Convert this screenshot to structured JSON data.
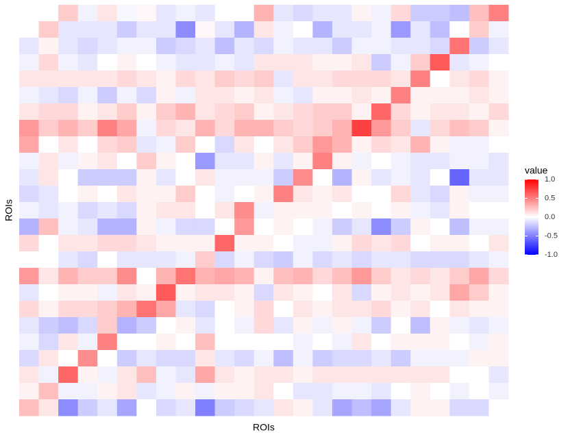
{
  "chart_data": {
    "type": "heatmap",
    "x_label": "ROIs",
    "y_label": "ROIs",
    "colors": {
      "low": "#0000ff",
      "mid": "#ffffff",
      "high": "#ff0000"
    },
    "colorbar": {
      "title": "value",
      "lim": [
        -1,
        1
      ],
      "ticks": [
        {
          "value": 1,
          "label": "1.0"
        },
        0.5,
        {
          "value": 0,
          "label": "0.0"
        },
        -0.5,
        {
          "value": -1,
          "label": "-1.0"
        }
      ]
    },
    "z": [
      [
        0,
        0,
        0.2,
        -0.05,
        0.1,
        -0.03,
        0.03,
        -0.1,
        -0.05,
        -0.1,
        0,
        0,
        0.3,
        -0.1,
        -0.15,
        -0.1,
        -0.1,
        0.05,
        -0.05,
        0.15,
        -0.2,
        -0.2,
        -0.25,
        0.25,
        0.5
      ],
      [
        0,
        0.2,
        -0.1,
        -0.1,
        -0.1,
        -0.2,
        -0.1,
        -0.1,
        -0.45,
        0.03,
        -0.1,
        -0.3,
        0.1,
        -0.05,
        0,
        -0.3,
        -0.1,
        -0.1,
        -0.05,
        -0.4,
        -0.1,
        -0.25,
        0,
        0.2,
        -0.05
      ],
      [
        -0.1,
        0.05,
        -0.1,
        -0.15,
        -0.1,
        -0.05,
        -0.05,
        -0.2,
        -0.15,
        -0.1,
        -0.25,
        -0.1,
        -0.15,
        -0.05,
        -0.1,
        -0.1,
        -0.2,
        -0.05,
        -0.05,
        -0.1,
        -0.1,
        -0.15,
        0.55,
        -0.2,
        -0.1
      ],
      [
        -0.05,
        0.15,
        -0.05,
        -0.1,
        0,
        0.05,
        0,
        -0.05,
        -0.1,
        -0.1,
        -0.05,
        -0.1,
        0.1,
        0.1,
        0.1,
        0.05,
        0.05,
        0.1,
        -0.2,
        -0.05,
        0.2,
        0.65,
        -0.1,
        -0.05,
        0
      ],
      [
        0.1,
        0.1,
        0.1,
        0.1,
        0.1,
        0.15,
        0.1,
        0.05,
        0.15,
        0.1,
        0.2,
        0.15,
        0.2,
        -0.1,
        0.1,
        0.1,
        0.15,
        0.15,
        0.15,
        0.1,
        0.5,
        0,
        0.1,
        0.15,
        0.05
      ],
      [
        -0.05,
        -0.1,
        -0.15,
        -0.05,
        -0.2,
        -0.05,
        -0.15,
        0.05,
        -0.05,
        0.1,
        0.1,
        0.05,
        0.1,
        -0.05,
        -0.1,
        0.05,
        0.05,
        0.1,
        0.05,
        0.5,
        0.05,
        0.05,
        0.05,
        0.1,
        0.05
      ],
      [
        0.1,
        0.15,
        0.15,
        0.05,
        0.1,
        0.2,
        0.05,
        0.2,
        0.3,
        0.1,
        0.15,
        0.2,
        0.05,
        0.1,
        0.15,
        0.2,
        0.2,
        0.05,
        0.6,
        0.15,
        0.05,
        0.1,
        0.1,
        0.05,
        0.15
      ],
      [
        0.4,
        0.2,
        0.3,
        0.2,
        0.5,
        0.35,
        -0.05,
        0.15,
        0.1,
        0.3,
        0.15,
        0.3,
        0.3,
        0.2,
        0.15,
        0.2,
        0.3,
        0.75,
        0.4,
        0.2,
        -0.1,
        0.15,
        0.25,
        0.2,
        0.05
      ],
      [
        0.35,
        0,
        0.1,
        0,
        0.15,
        0.2,
        -0.1,
        -0.05,
        0.2,
        0,
        -0.15,
        0.1,
        0,
        0.1,
        0.2,
        0.4,
        0.3,
        0.05,
        0.15,
        0.1,
        0.3,
        0.05,
        -0.05,
        -0.05,
        0
      ],
      [
        -0.05,
        0.1,
        -0.05,
        0.05,
        0.1,
        0,
        0.2,
        0.05,
        0,
        -0.4,
        -0.1,
        -0.1,
        0.05,
        -0.1,
        0.05,
        0.5,
        0.05,
        -0.05,
        0,
        -0.05,
        -0.1,
        -0.1,
        -0.05,
        -0.05,
        -0.1
      ],
      [
        -0.1,
        0.1,
        0,
        -0.2,
        -0.2,
        -0.2,
        0.05,
        -0.1,
        0,
        0.1,
        -0.05,
        -0.05,
        -0.05,
        -0.2,
        0.45,
        0,
        -0.3,
        0.05,
        -0.1,
        -0.05,
        -0.1,
        0,
        -0.6,
        -0.1,
        -0.1
      ],
      [
        -0.15,
        -0.1,
        0,
        0.05,
        0,
        0.1,
        0.05,
        0.05,
        0.2,
        0,
        -0.05,
        0,
        0.05,
        0.5,
        0.1,
        0.05,
        0.1,
        0,
        0,
        0.15,
        -0.1,
        -0.15,
        0.05,
        -0.05,
        -0.05
      ],
      [
        -0.05,
        -0.1,
        -0.05,
        -0.15,
        -0.1,
        -0.15,
        0.05,
        0.1,
        0.1,
        0,
        0.1,
        0.45,
        -0.05,
        0.05,
        0.05,
        0.05,
        0,
        0.05,
        0,
        0.05,
        -0.05,
        -0.1,
        0.05,
        0,
        0
      ],
      [
        -0.3,
        0.25,
        -0.05,
        -0.1,
        -0.3,
        -0.3,
        0.05,
        -0.05,
        -0.15,
        -0.15,
        0,
        0.4,
        0,
        0.05,
        0,
        -0.05,
        -0.2,
        -0.1,
        -0.45,
        -0.2,
        0.05,
        0,
        -0.25,
        -0.05,
        -0.05
      ],
      [
        0.15,
        0,
        0.1,
        0.1,
        0.15,
        0.15,
        0.1,
        0.05,
        0.05,
        0.05,
        0.6,
        0.05,
        0.05,
        0,
        -0.05,
        -0.05,
        0.05,
        0.15,
        0.1,
        0.15,
        0,
        0.05,
        0.05,
        0,
        0.1
      ],
      [
        0,
        0,
        -0.1,
        -0.15,
        0,
        -0.1,
        -0.1,
        -0.1,
        -0.05,
        0.2,
        -0.15,
        -0.05,
        -0.15,
        -0.2,
        -0.05,
        -0.15,
        -0.1,
        -0.15,
        -0.1,
        -0.1,
        -0.15,
        -0.15,
        -0.15,
        -0.1,
        -0.05
      ],
      [
        0.4,
        0.1,
        0.3,
        0.2,
        0.2,
        0.45,
        0,
        0.3,
        0.55,
        0.3,
        0.35,
        0.3,
        0.05,
        0.25,
        0.3,
        0.15,
        0.25,
        0.4,
        0.2,
        0.1,
        0.15,
        0.1,
        0.2,
        0.35,
        0.15
      ],
      [
        -0.1,
        0,
        0.05,
        0.05,
        -0.05,
        0.1,
        0.05,
        0.65,
        0.05,
        0.1,
        0.1,
        0.05,
        -0.15,
        0.1,
        0.05,
        0,
        0.1,
        -0.15,
        0.05,
        0.1,
        0.05,
        0.1,
        0.35,
        0.2,
        0.05
      ],
      [
        0.15,
        0.05,
        0.15,
        0.15,
        0.2,
        0.3,
        0.55,
        0.35,
        -0.1,
        -0.15,
        0,
        0.05,
        0.15,
        0,
        0.1,
        0.05,
        0.1,
        0.1,
        0.15,
        0.05,
        0.1,
        0,
        0.1,
        0.05,
        0.05
      ],
      [
        -0.1,
        -0.2,
        -0.25,
        -0.15,
        0.2,
        -0.3,
        -0.2,
        0,
        0.05,
        -0.1,
        0,
        -0.05,
        0.15,
        -0.1,
        0.05,
        -0.05,
        0.05,
        -0.05,
        -0.2,
        0,
        -0.25,
        0.05,
        -0.05,
        -0.1,
        -0.05
      ],
      [
        -0.05,
        -0.15,
        0.1,
        -0.05,
        0.5,
        0,
        0,
        0.05,
        0,
        0.25,
        0,
        0,
        0,
        0,
        -0.05,
        0,
        -0.05,
        0.1,
        0,
        0.05,
        0.05,
        0.05,
        0,
        -0.05,
        0.05
      ],
      [
        -0.15,
        0.1,
        0,
        0.45,
        0,
        -0.2,
        -0.1,
        -0.15,
        -0.15,
        0.1,
        -0.1,
        -0.15,
        -0.05,
        -0.25,
        -0.05,
        -0.2,
        -0.15,
        -0.15,
        -0.1,
        -0.2,
        -0.05,
        -0.05,
        -0.05,
        0.05,
        0.05
      ],
      [
        0.1,
        -0.05,
        0.6,
        0.05,
        -0.05,
        0.1,
        0.25,
        -0.05,
        -0.1,
        0.35,
        0.1,
        0.05,
        0.1,
        0.1,
        0.05,
        0.1,
        0.1,
        0.1,
        0.1,
        0.1,
        0.1,
        0.1,
        0,
        0,
        -0.1
      ],
      [
        0.05,
        0.25,
        -0.05,
        -0.05,
        0.05,
        0.1,
        -0.1,
        -0.05,
        0.05,
        -0.05,
        0.05,
        0.05,
        0.1,
        0,
        -0.1,
        -0.1,
        -0.05,
        -0.05,
        -0.1,
        0,
        0.05,
        0,
        -0.05,
        0,
        -0.05
      ],
      [
        0.25,
        0.1,
        -0.45,
        -0.2,
        -0.1,
        -0.35,
        0,
        -0.15,
        -0.1,
        -0.5,
        -0.2,
        -0.15,
        -0.1,
        0.1,
        0.05,
        -0.1,
        -0.35,
        -0.25,
        -0.35,
        -0.1,
        0.05,
        0.05,
        -0.15,
        -0.15,
        0
      ]
    ]
  }
}
